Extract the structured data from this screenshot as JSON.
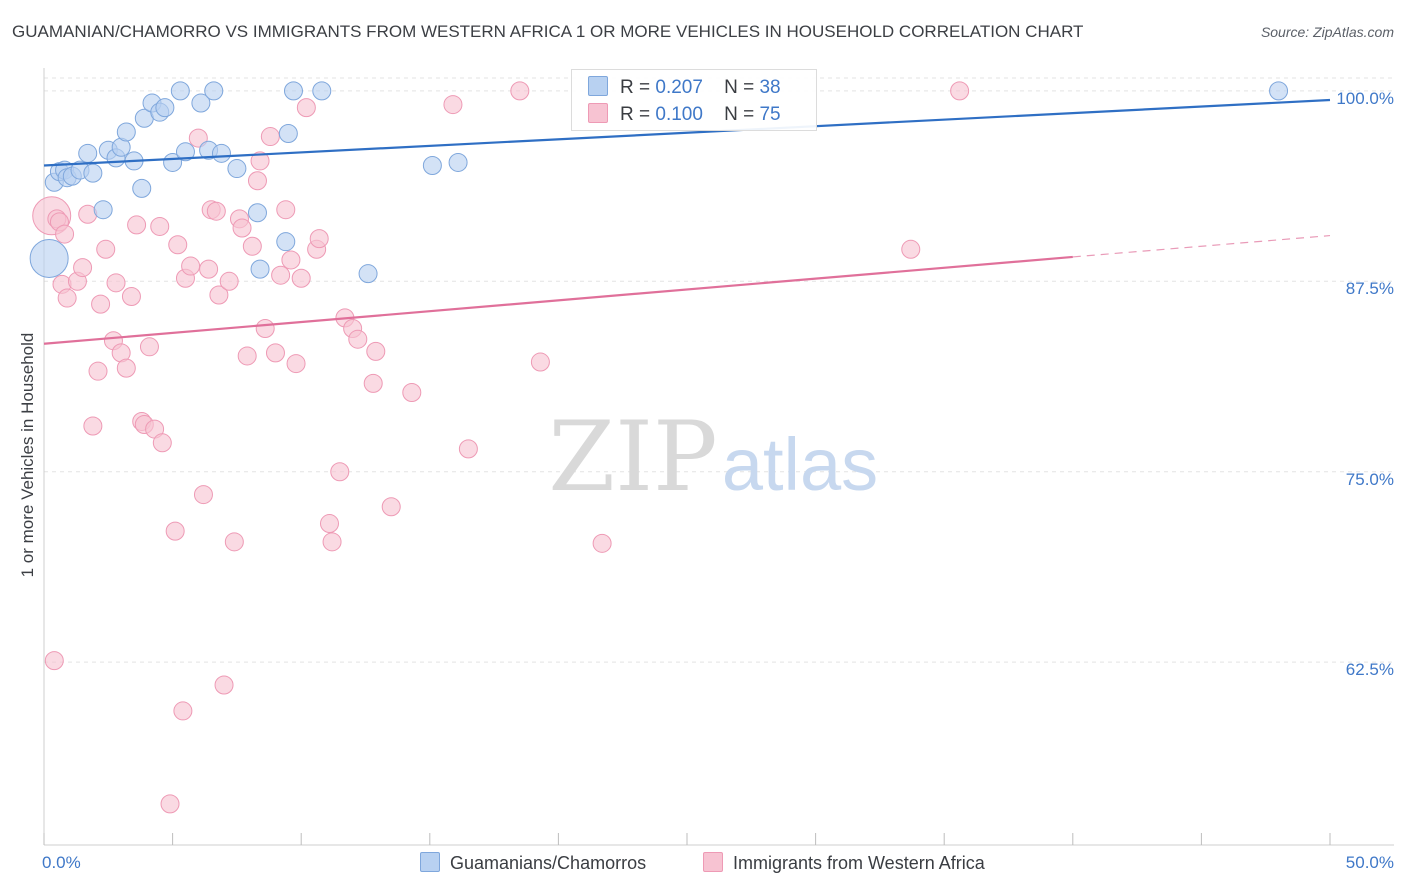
{
  "title": "GUAMANIAN/CHAMORRO VS IMMIGRANTS FROM WESTERN AFRICA 1 OR MORE VEHICLES IN HOUSEHOLD CORRELATION CHART",
  "source": "Source: ZipAtlas.com",
  "watermark": {
    "zip": "ZIP",
    "atlas": "atlas"
  },
  "colors": {
    "blue_fill": "#b8d1f1",
    "blue_stroke": "#7fa7dc",
    "blue_line": "#2f6fc4",
    "pink_fill": "#f7c3d2",
    "pink_stroke": "#ee9ab5",
    "pink_line": "#e0709a",
    "axis_text": "#3f78c8",
    "grid": "#e3e3e3"
  },
  "legend": [
    {
      "r_label": "R =",
      "r_value": "0.207",
      "n_label": "N =",
      "n_value": "38"
    },
    {
      "r_label": "R =",
      "r_value": "0.100",
      "n_label": "N =",
      "n_value": "75"
    }
  ],
  "chart_data": {
    "type": "scatter",
    "xlabel": "",
    "ylabel": "1 or more Vehicles in Household",
    "xlim": [
      0,
      50
    ],
    "ylim": [
      50.5,
      101.5
    ],
    "x_tick_labels": {
      "min": "0.0%",
      "max": "50.0%"
    },
    "y_ticks": [
      {
        "value": 100,
        "label": "100.0%"
      },
      {
        "value": 87.5,
        "label": "87.5%"
      },
      {
        "value": 75,
        "label": "75.0%"
      },
      {
        "value": 62.5,
        "label": "62.5%"
      }
    ],
    "grid": true,
    "series": [
      {
        "name": "Guamanians/Chamorros",
        "color": "blue",
        "trend": {
          "x": [
            0,
            50
          ],
          "y": [
            95.1,
            99.4
          ]
        },
        "points": [
          [
            0.2,
            89.0
          ],
          [
            0.4,
            94.0
          ],
          [
            0.6,
            94.7
          ],
          [
            0.8,
            94.8
          ],
          [
            0.9,
            94.3
          ],
          [
            1.1,
            94.4
          ],
          [
            1.4,
            94.8
          ],
          [
            1.7,
            95.9
          ],
          [
            1.9,
            94.6
          ],
          [
            2.3,
            92.2
          ],
          [
            2.5,
            96.1
          ],
          [
            2.8,
            95.6
          ],
          [
            3.0,
            96.3
          ],
          [
            3.2,
            97.3
          ],
          [
            3.5,
            95.4
          ],
          [
            3.8,
            93.6
          ],
          [
            3.9,
            98.2
          ],
          [
            4.2,
            99.2
          ],
          [
            4.5,
            98.6
          ],
          [
            4.7,
            98.9
          ],
          [
            5.0,
            95.3
          ],
          [
            5.3,
            100.0
          ],
          [
            5.5,
            96.0
          ],
          [
            6.1,
            99.2
          ],
          [
            6.4,
            96.1
          ],
          [
            6.6,
            100.0
          ],
          [
            6.9,
            95.9
          ],
          [
            7.5,
            94.9
          ],
          [
            8.3,
            92.0
          ],
          [
            8.4,
            88.3
          ],
          [
            9.4,
            90.1
          ],
          [
            9.5,
            97.2
          ],
          [
            9.7,
            100.0
          ],
          [
            10.8,
            100.0
          ],
          [
            12.6,
            88.0
          ],
          [
            15.1,
            95.1
          ],
          [
            16.1,
            95.3
          ],
          [
            48.0,
            100.0
          ]
        ]
      },
      {
        "name": "Immigrants from Western Africa",
        "color": "pink",
        "trend": {
          "x": [
            0,
            40
          ],
          "y": [
            83.4,
            89.1
          ]
        },
        "trend_dashed": {
          "x": [
            40,
            50
          ],
          "y": [
            89.1,
            90.5
          ]
        },
        "points": [
          [
            0.3,
            91.8
          ],
          [
            0.5,
            91.6
          ],
          [
            0.6,
            91.4
          ],
          [
            0.7,
            87.3
          ],
          [
            0.8,
            90.6
          ],
          [
            0.9,
            86.4
          ],
          [
            1.3,
            87.5
          ],
          [
            1.5,
            88.4
          ],
          [
            1.7,
            91.9
          ],
          [
            1.9,
            78.0
          ],
          [
            2.1,
            81.6
          ],
          [
            2.2,
            86.0
          ],
          [
            2.4,
            89.6
          ],
          [
            2.7,
            83.6
          ],
          [
            2.8,
            87.4
          ],
          [
            3.0,
            82.8
          ],
          [
            3.2,
            81.8
          ],
          [
            3.4,
            86.5
          ],
          [
            3.6,
            91.2
          ],
          [
            3.8,
            78.3
          ],
          [
            3.9,
            78.1
          ],
          [
            4.1,
            83.2
          ],
          [
            4.3,
            77.8
          ],
          [
            4.5,
            91.1
          ],
          [
            4.6,
            76.9
          ],
          [
            4.9,
            53.2
          ],
          [
            5.1,
            71.1
          ],
          [
            5.2,
            89.9
          ],
          [
            5.4,
            59.3
          ],
          [
            5.5,
            87.7
          ],
          [
            5.7,
            88.5
          ],
          [
            6.0,
            96.9
          ],
          [
            6.2,
            73.5
          ],
          [
            6.4,
            88.3
          ],
          [
            6.5,
            92.2
          ],
          [
            6.7,
            92.1
          ],
          [
            6.8,
            86.6
          ],
          [
            7.0,
            61.0
          ],
          [
            7.2,
            87.5
          ],
          [
            7.4,
            70.4
          ],
          [
            7.6,
            91.6
          ],
          [
            7.7,
            91.0
          ],
          [
            7.9,
            82.6
          ],
          [
            8.1,
            89.8
          ],
          [
            8.3,
            94.1
          ],
          [
            8.4,
            95.4
          ],
          [
            8.6,
            84.4
          ],
          [
            8.8,
            97.0
          ],
          [
            9.0,
            82.8
          ],
          [
            9.2,
            87.9
          ],
          [
            9.4,
            92.2
          ],
          [
            9.6,
            88.9
          ],
          [
            9.8,
            82.1
          ],
          [
            10.0,
            87.7
          ],
          [
            10.2,
            98.9
          ],
          [
            10.6,
            89.6
          ],
          [
            10.7,
            90.3
          ],
          [
            11.1,
            71.6
          ],
          [
            11.2,
            70.4
          ],
          [
            11.5,
            75.0
          ],
          [
            11.7,
            85.1
          ],
          [
            12.0,
            84.4
          ],
          [
            12.2,
            83.7
          ],
          [
            12.8,
            80.8
          ],
          [
            12.9,
            82.9
          ],
          [
            13.5,
            72.7
          ],
          [
            14.3,
            80.2
          ],
          [
            15.9,
            99.1
          ],
          [
            16.5,
            76.5
          ],
          [
            18.5,
            100.0
          ],
          [
            19.3,
            82.2
          ],
          [
            21.7,
            70.3
          ],
          [
            33.7,
            89.6
          ],
          [
            35.6,
            100.0
          ],
          [
            0.4,
            62.6
          ]
        ]
      }
    ]
  }
}
